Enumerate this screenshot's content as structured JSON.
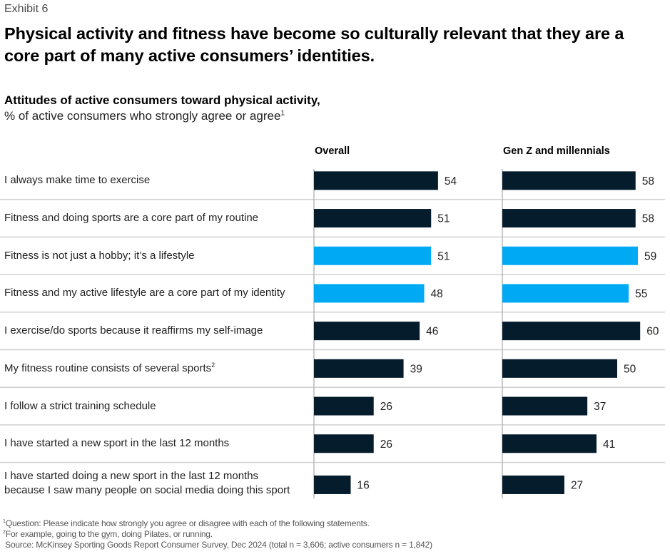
{
  "header": {
    "exhibit": "Exhibit 6",
    "title": "Physical activity and fitness have become so culturally relevant that they are a core part of many active consumers’ identities.",
    "subtitle": "Attitudes of active consumers toward physical activity,",
    "unit": "% of active consumers who strongly agree or agree",
    "unit_sup": "1"
  },
  "colors": {
    "dark": "#051c2c",
    "highlight": "#00a9f4",
    "gridline": "#d0d0d0",
    "axis": "#b8b8b8"
  },
  "chart_data": {
    "type": "bar",
    "orientation": "horizontal",
    "title": "Attitudes of active consumers toward physical activity",
    "ylabel": "% of active consumers who strongly agree or agree",
    "xlim": [
      0,
      60
    ],
    "categories": [
      {
        "text": "I always make time to exercise",
        "line2": "",
        "sup": "",
        "highlight": false
      },
      {
        "text": "Fitness and doing sports are a core part of my routine",
        "line2": "",
        "sup": "",
        "highlight": false
      },
      {
        "text": "Fitness is not just a hobby; it’s a lifestyle",
        "line2": "",
        "sup": "",
        "highlight": true
      },
      {
        "text": "Fitness and my active lifestyle are a core part of my identity",
        "line2": "",
        "sup": "",
        "highlight": true
      },
      {
        "text": "I exercise/do sports because it reaffirms my self-image",
        "line2": "",
        "sup": "",
        "highlight": false
      },
      {
        "text": "My fitness routine consists of several sports",
        "line2": "",
        "sup": "2",
        "highlight": false
      },
      {
        "text": "I follow a strict training schedule",
        "line2": "",
        "sup": "",
        "highlight": false
      },
      {
        "text": "I have started a new sport in the last 12 months",
        "line2": "",
        "sup": "",
        "highlight": false
      },
      {
        "text": "I have started doing a new sport in the last 12 months",
        "line2": "because I saw many people on social media doing this sport",
        "sup": "",
        "highlight": false
      }
    ],
    "series": [
      {
        "name": "Overall",
        "values": [
          54,
          51,
          51,
          48,
          46,
          39,
          26,
          26,
          16
        ]
      },
      {
        "name": "Gen Z and millennials",
        "values": [
          58,
          58,
          59,
          55,
          60,
          50,
          37,
          41,
          27
        ]
      }
    ]
  },
  "footnotes": [
    {
      "sup": "1",
      "text": "Question: Please indicate how strongly you agree or disagree with each of the following statements."
    },
    {
      "sup": "2",
      "text": "For example, going to the gym, doing Pilates, or running."
    },
    {
      "sup": "",
      "text": " Source: McKinsey Sporting Goods Report Consumer Survey, Dec 2024 (total n = 3,606; active consumers n = 1,842)"
    }
  ]
}
